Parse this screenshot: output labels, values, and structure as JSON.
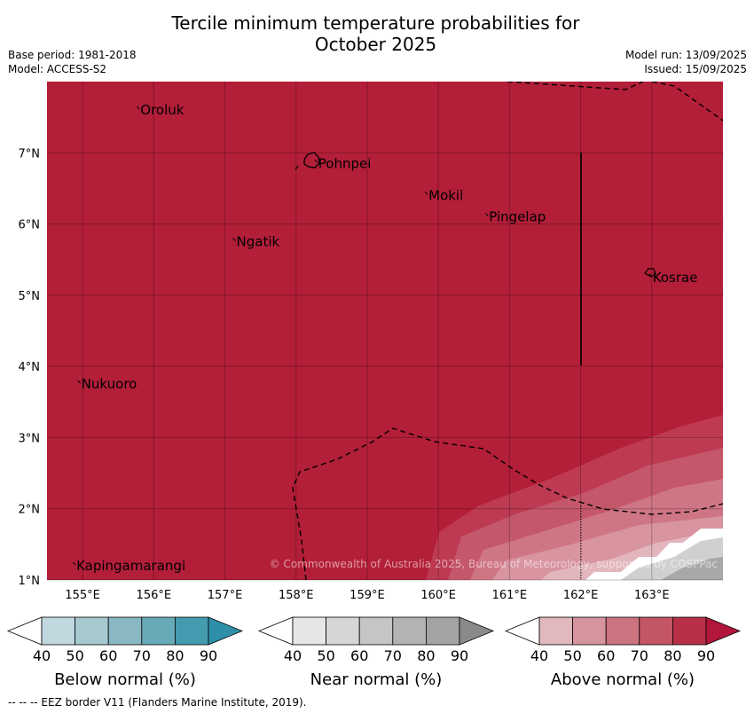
{
  "title_line1": "Tercile minimum temperature probabilities for",
  "title_line2": "October 2025",
  "meta_left": {
    "base_period": "Base period: 1981-2018",
    "model": "Model: ACCESS-S2"
  },
  "meta_right": {
    "model_run": "Model run: 13/09/2025",
    "issued": "Issued: 15/09/2025"
  },
  "map": {
    "lon_range": [
      154.5,
      164.0
    ],
    "lat_range": [
      1.0,
      8.0
    ],
    "lon_ticks": [
      "155°E",
      "156°E",
      "157°E",
      "158°E",
      "159°E",
      "160°E",
      "161°E",
      "162°E",
      "163°E"
    ],
    "lat_ticks": [
      "1°N",
      "2°N",
      "3°N",
      "4°N",
      "5°N",
      "6°N",
      "7°N"
    ],
    "background_color": "#b31e38",
    "places": [
      {
        "name": "Oroluk",
        "lon": 155.8,
        "lat": 7.6
      },
      {
        "name": "Pohnpei",
        "lon": 158.3,
        "lat": 6.85
      },
      {
        "name": "Mokil",
        "lon": 159.85,
        "lat": 6.4
      },
      {
        "name": "Pingelap",
        "lon": 160.7,
        "lat": 6.1
      },
      {
        "name": "Ngatik",
        "lon": 157.15,
        "lat": 5.75
      },
      {
        "name": "Kosrae",
        "lon": 163.0,
        "lat": 5.25
      },
      {
        "name": "Nukuoro",
        "lon": 154.97,
        "lat": 3.75
      },
      {
        "name": "Kapingamarangi",
        "lon": 154.9,
        "lat": 1.2
      }
    ],
    "copyright": "© Commonwealth of Australia 2025, Bureau of Meteorology, supported by COSPPac"
  },
  "colorbars": [
    {
      "label": "Below normal (%)",
      "ticks": [
        "40",
        "50",
        "60",
        "70",
        "80",
        "90"
      ],
      "colors": [
        "#c1d8df",
        "#a6c8cf",
        "#89b8c2",
        "#68a9b8",
        "#449aae"
      ],
      "arrow_color": "#2d8fa8"
    },
    {
      "label": "Near normal (%)",
      "ticks": [
        "40",
        "50",
        "60",
        "70",
        "80",
        "90"
      ],
      "colors": [
        "#e6e6e6",
        "#d6d6d6",
        "#c5c5c5",
        "#b3b3b3",
        "#a3a3a3"
      ],
      "arrow_color": "#8a8a8a"
    },
    {
      "label": "Above normal (%)",
      "ticks": [
        "40",
        "50",
        "60",
        "70",
        "80",
        "90"
      ],
      "colors": [
        "#e1b8be",
        "#d6959e",
        "#cc7380",
        "#c35564",
        "#b82f48"
      ],
      "arrow_color": "#b0173a"
    }
  ],
  "footnote": "--  --  -- EEZ border V11 (Flanders Marine Institute, 2019)."
}
